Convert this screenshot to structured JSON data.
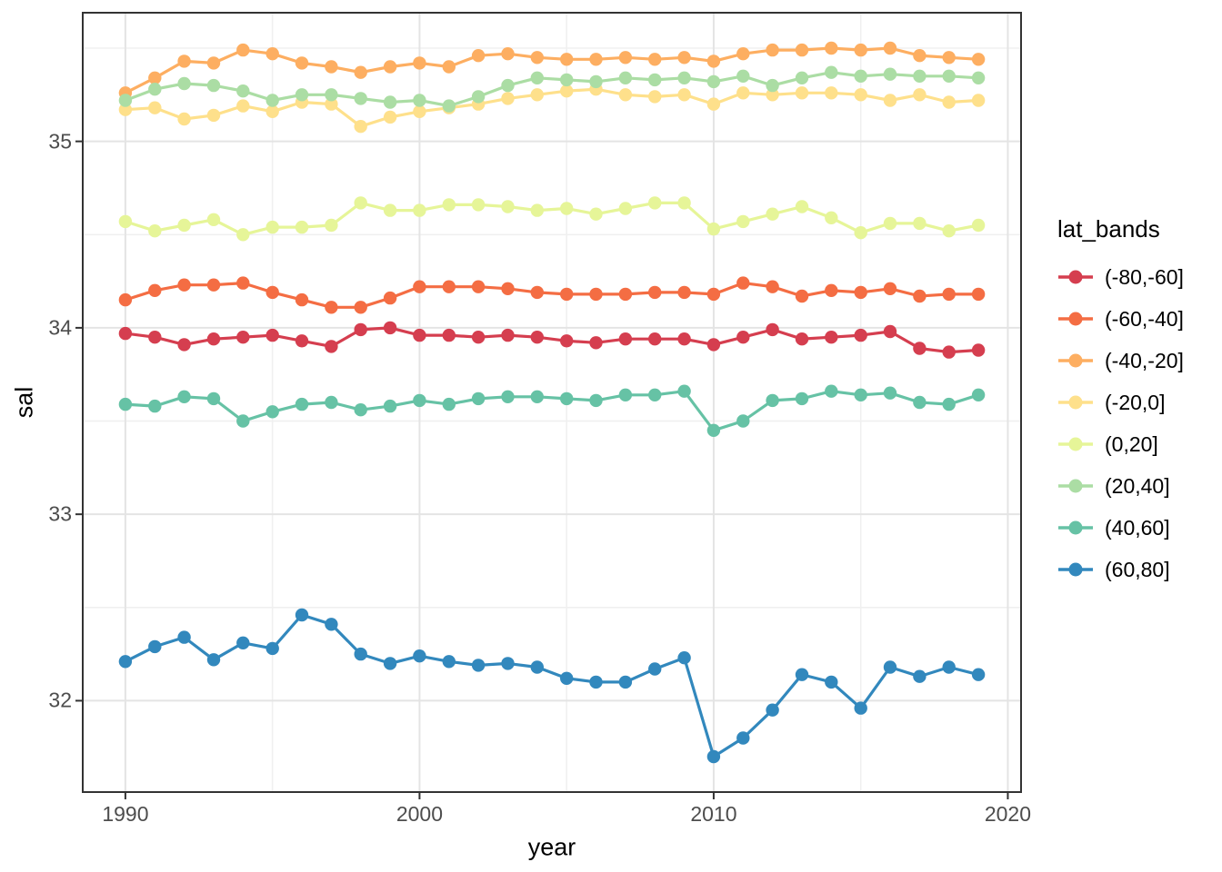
{
  "chart_data": {
    "type": "line",
    "title": "",
    "xlabel": "year",
    "ylabel": "sal",
    "legend_title": "lat_bands",
    "legend_position": "right",
    "grid": true,
    "xlim": [
      1988.55,
      2020.45
    ],
    "ylim": [
      31.51,
      35.69
    ],
    "x_ticks": [
      1990,
      2000,
      2010,
      2020
    ],
    "x_minor_ticks": [
      1995,
      2005,
      2015
    ],
    "y_ticks": [
      32,
      33,
      34,
      35
    ],
    "y_minor_ticks": [
      32.5,
      33.5,
      34.5,
      35.5
    ],
    "x": [
      1990,
      1991,
      1992,
      1993,
      1994,
      1995,
      1996,
      1997,
      1998,
      1999,
      2000,
      2001,
      2002,
      2003,
      2004,
      2005,
      2006,
      2007,
      2008,
      2009,
      2010,
      2011,
      2012,
      2013,
      2014,
      2015,
      2016,
      2017,
      2018,
      2019
    ],
    "series": [
      {
        "name": "(-80,-60]",
        "color": "#D53E4F",
        "values": [
          33.97,
          33.95,
          33.91,
          33.94,
          33.95,
          33.96,
          33.93,
          33.9,
          33.99,
          34.0,
          33.96,
          33.96,
          33.95,
          33.96,
          33.95,
          33.93,
          33.92,
          33.94,
          33.94,
          33.94,
          33.91,
          33.95,
          33.99,
          33.94,
          33.95,
          33.96,
          33.98,
          33.89,
          33.87,
          33.88
        ]
      },
      {
        "name": "(-60,-40]",
        "color": "#F46D43",
        "values": [
          34.15,
          34.2,
          34.23,
          34.23,
          34.24,
          34.19,
          34.15,
          34.11,
          34.11,
          34.16,
          34.22,
          34.22,
          34.22,
          34.21,
          34.19,
          34.18,
          34.18,
          34.18,
          34.19,
          34.19,
          34.18,
          34.24,
          34.22,
          34.17,
          34.2,
          34.19,
          34.21,
          34.17,
          34.18,
          34.18
        ]
      },
      {
        "name": "(-40,-20]",
        "color": "#FDAE61",
        "values": [
          35.26,
          35.34,
          35.43,
          35.42,
          35.49,
          35.47,
          35.42,
          35.4,
          35.37,
          35.4,
          35.42,
          35.4,
          35.46,
          35.47,
          35.45,
          35.44,
          35.44,
          35.45,
          35.44,
          35.45,
          35.43,
          35.47,
          35.49,
          35.49,
          35.5,
          35.49,
          35.5,
          35.46,
          35.45,
          35.44
        ]
      },
      {
        "name": "(-20,0]",
        "color": "#FEE08B",
        "values": [
          35.17,
          35.18,
          35.12,
          35.14,
          35.19,
          35.16,
          35.21,
          35.2,
          35.08,
          35.13,
          35.16,
          35.18,
          35.2,
          35.23,
          35.25,
          35.27,
          35.28,
          35.25,
          35.24,
          35.25,
          35.2,
          35.26,
          35.25,
          35.26,
          35.26,
          35.25,
          35.22,
          35.25,
          35.21,
          35.22
        ]
      },
      {
        "name": "(0,20]",
        "color": "#E6F598",
        "values": [
          34.57,
          34.52,
          34.55,
          34.58,
          34.5,
          34.54,
          34.54,
          34.55,
          34.67,
          34.63,
          34.63,
          34.66,
          34.66,
          34.65,
          34.63,
          34.64,
          34.61,
          34.64,
          34.67,
          34.67,
          34.53,
          34.57,
          34.61,
          34.65,
          34.59,
          34.51,
          34.56,
          34.56,
          34.52,
          34.55
        ]
      },
      {
        "name": "(20,40]",
        "color": "#ABDDA4",
        "values": [
          35.22,
          35.28,
          35.31,
          35.3,
          35.27,
          35.22,
          35.25,
          35.25,
          35.23,
          35.21,
          35.22,
          35.19,
          35.24,
          35.3,
          35.34,
          35.33,
          35.32,
          35.34,
          35.33,
          35.34,
          35.32,
          35.35,
          35.3,
          35.34,
          35.37,
          35.35,
          35.36,
          35.35,
          35.35,
          35.34
        ]
      },
      {
        "name": "(40,60]",
        "color": "#66C2A5",
        "values": [
          33.59,
          33.58,
          33.63,
          33.62,
          33.5,
          33.55,
          33.59,
          33.6,
          33.56,
          33.58,
          33.61,
          33.59,
          33.62,
          33.63,
          33.63,
          33.62,
          33.61,
          33.64,
          33.64,
          33.66,
          33.45,
          33.5,
          33.61,
          33.62,
          33.66,
          33.64,
          33.65,
          33.6,
          33.59,
          33.64
        ]
      },
      {
        "name": "(60,80]",
        "color": "#3288BD",
        "values": [
          32.21,
          32.29,
          32.34,
          32.22,
          32.31,
          32.28,
          32.46,
          32.41,
          32.25,
          32.2,
          32.24,
          32.21,
          32.19,
          32.2,
          32.18,
          32.12,
          32.1,
          32.1,
          32.17,
          32.23,
          31.7,
          31.8,
          31.95,
          32.14,
          32.1,
          31.96,
          32.18,
          32.13,
          32.18,
          32.14
        ]
      }
    ]
  },
  "style": {
    "background": "#FFFFFF",
    "panel_border": "#333333",
    "grid_major": "#E4E4E4",
    "grid_minor": "#F0F0F0",
    "tick_mark": "#333333",
    "tick_text": "#4D4D4D",
    "title_text": "#000000"
  }
}
